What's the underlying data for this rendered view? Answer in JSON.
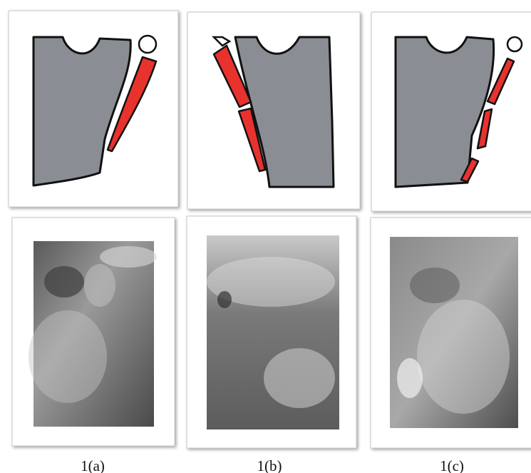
{
  "figure": {
    "panels": [
      {
        "label": "1(a)"
      },
      {
        "label": "1(b)"
      },
      {
        "label": "1(c)"
      }
    ]
  }
}
